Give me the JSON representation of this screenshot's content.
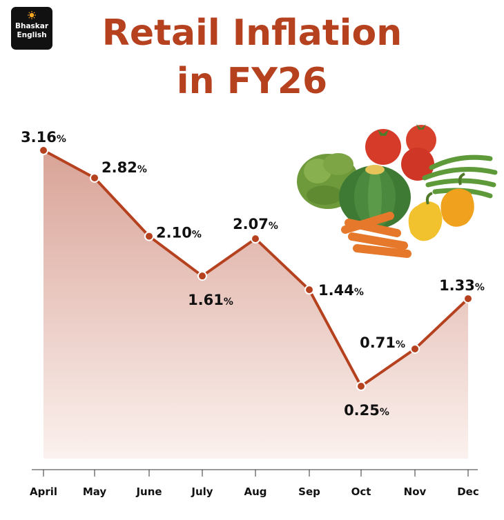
{
  "logo": {
    "line1": "Bhaskar",
    "line2": "English"
  },
  "header": {
    "title_line1": "Retail Inflation",
    "title_line2": "in FY26"
  },
  "colors": {
    "accent": "#b5411f",
    "area_top": "#d9a397",
    "text": "#111111"
  },
  "illustration": {
    "name": "vegetables-illustration"
  },
  "chart_data": {
    "type": "area",
    "title": "Retail Inflation in FY26",
    "categories": [
      "April",
      "May",
      "June",
      "July",
      "Aug",
      "Sep",
      "Oct",
      "Nov",
      "Dec"
    ],
    "values": [
      3.16,
      2.82,
      2.1,
      1.61,
      2.07,
      1.44,
      0.25,
      0.71,
      1.33
    ],
    "labels": [
      "3.16",
      "2.82",
      "2.10",
      "1.61",
      "2.07",
      "1.44",
      "0.25",
      "0.71",
      "1.33"
    ],
    "unit": "%",
    "grid": false,
    "legend": "none"
  }
}
